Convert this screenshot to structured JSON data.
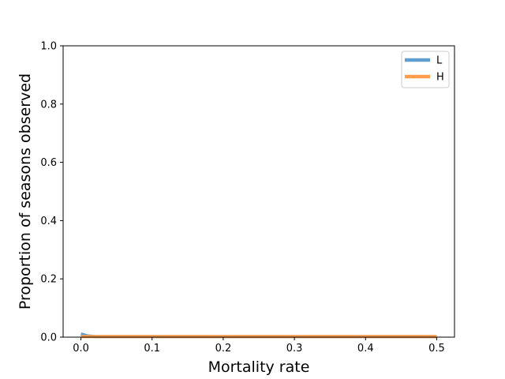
{
  "chart_data": {
    "type": "line",
    "xlabel": "Mortality rate",
    "ylabel": "Proportion of seasons observed",
    "xlim": [
      -0.025,
      0.525
    ],
    "ylim": [
      0.0,
      1.0
    ],
    "xticks": [
      "0.0",
      "0.1",
      "0.2",
      "0.3",
      "0.4",
      "0.5"
    ],
    "yticks": [
      "0.0",
      "0.2",
      "0.4",
      "0.6",
      "0.8",
      "1.0"
    ],
    "grid": false,
    "legend_position": "top-right",
    "series": [
      {
        "name": "L",
        "color": "#5f9ed1",
        "x": [
          0.0,
          0.01,
          0.02,
          0.05,
          0.1,
          0.15,
          0.2,
          0.25,
          0.3,
          0.35,
          0.4,
          0.45,
          0.5
        ],
        "values": [
          0.011,
          0.004,
          0.002,
          0.002,
          0.002,
          0.002,
          0.002,
          0.002,
          0.002,
          0.002,
          0.002,
          0.002,
          0.002
        ]
      },
      {
        "name": "H",
        "color": "#ff9e4a",
        "x": [
          0.0,
          0.05,
          0.1,
          0.15,
          0.2,
          0.25,
          0.3,
          0.35,
          0.4,
          0.45,
          0.5
        ],
        "values": [
          0.002,
          0.002,
          0.002,
          0.002,
          0.002,
          0.002,
          0.002,
          0.002,
          0.002,
          0.002,
          0.002
        ]
      }
    ]
  }
}
